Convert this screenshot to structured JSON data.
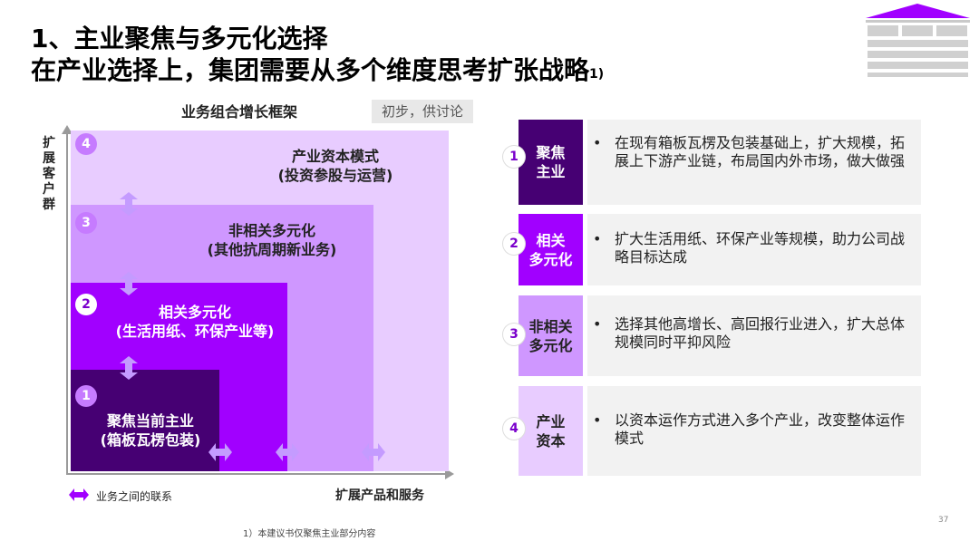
{
  "header": {
    "title_line1": "1、主业聚焦与多元化选择",
    "title_line2": "在产业选择上，集团需要从多个维度思考扩张战略",
    "title_sup": "1)"
  },
  "chart": {
    "title": "业务组合增长框架",
    "tag": "初步，供讨论",
    "y_axis_label": "扩展客户群",
    "x_axis_label": "扩展产品和服务",
    "legend": "业务之间的联系",
    "levels": [
      {
        "num": "1",
        "line1": "聚焦当前主业",
        "line2": "(箱板瓦楞包装)"
      },
      {
        "num": "2",
        "line1": "相关多元化",
        "line2": "(生活用纸、环保产业等)"
      },
      {
        "num": "3",
        "line1": "非相关多元化",
        "line2": "(其他抗周期新业务)"
      },
      {
        "num": "4",
        "line1": "产业资本模式",
        "line2": "(投资参股与运营)"
      }
    ],
    "colors": {
      "level1": "#460073",
      "level2": "#a100ff",
      "level3": "#cf97ff",
      "level4": "#e8ccff",
      "arrow": "#c49bff"
    }
  },
  "rows": [
    {
      "num": "1",
      "label_l1": "聚焦",
      "label_l2": "主业",
      "color": "#460073",
      "bullet": "•",
      "text": "在现有箱板瓦楞及包装基础上，扩大规模，拓展上下游产业链，布局国内外市场，做大做强"
    },
    {
      "num": "2",
      "label_l1": "相关",
      "label_l2": "多元化",
      "color": "#a100ff",
      "bullet": "•",
      "text": "扩大生活用纸、环保产业等规模，助力公司战略目标达成"
    },
    {
      "num": "3",
      "label_l1": "非相关",
      "label_l2": "多元化",
      "color": "#cf97ff",
      "bullet": "•",
      "text": "选择其他高增长、高回报行业进入，扩大总体规模同时平抑风险"
    },
    {
      "num": "4",
      "label_l1": "产业",
      "label_l2": "资本",
      "color": "#e8ccff",
      "bullet": "•",
      "text": "以资本运作方式进入多个产业，改变整体运作模式"
    }
  ],
  "footnote": "1）本建议书仅聚焦主业部分内容",
  "page_number": "37"
}
